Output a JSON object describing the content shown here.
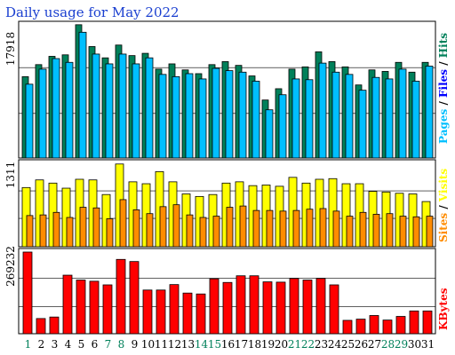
{
  "chart_data": {
    "type": "bar",
    "title": "Daily usage for May 2022",
    "categories": [
      "1",
      "2",
      "3",
      "4",
      "5",
      "6",
      "7",
      "8",
      "9",
      "10",
      "11",
      "12",
      "13",
      "14",
      "15",
      "16",
      "17",
      "18",
      "19",
      "20",
      "21",
      "22",
      "23",
      "24",
      "25",
      "26",
      "27",
      "28",
      "29",
      "30",
      "31"
    ],
    "weekend_days": [
      "1",
      "7",
      "8",
      "14",
      "15",
      "21",
      "22",
      "28",
      "29"
    ],
    "panels": [
      {
        "name": "requests",
        "max_label": "17918",
        "ylim": [
          0,
          17918
        ],
        "series": [
          {
            "name": "Hits",
            "color": "#00805a",
            "values": [
              10800,
              12400,
              13500,
              13700,
              17700,
              14800,
              13300,
              15000,
              13600,
              13900,
              11800,
              12500,
              11700,
              11200,
              12400,
              12800,
              12300,
              10900,
              7700,
              9200,
              11800,
              12100,
              14100,
              12800,
              12100,
              9700,
              11700,
              11500,
              12700,
              11400,
              12700
            ]
          },
          {
            "name": "Files",
            "color": "#0000ff",
            "values": [
              0,
              0,
              0,
              0,
              0,
              0,
              0,
              0,
              0,
              0,
              0,
              0,
              0,
              0,
              0,
              0,
              0,
              0,
              0,
              0,
              0,
              0,
              0,
              0,
              0,
              0,
              0,
              0,
              0,
              0,
              0
            ]
          },
          {
            "name": "Pages",
            "color": "#00bfff",
            "values": [
              9800,
              11800,
              13200,
              12700,
              16700,
              13800,
              12500,
              13800,
              12500,
              13300,
              11100,
              10800,
              11200,
              10500,
              11900,
              11600,
              11400,
              10200,
              6400,
              8400,
              10500,
              10400,
              12600,
              11400,
              11100,
              9000,
              10700,
              10500,
              11800,
              10200,
              12200
            ]
          }
        ]
      },
      {
        "name": "visits",
        "max_label": "1311",
        "ylim": [
          0,
          1311
        ],
        "series": [
          {
            "name": "Visits",
            "color": "#ffff00",
            "values": [
              930,
              1050,
              1000,
              920,
              1060,
              1050,
              820,
              1300,
              1020,
              990,
              1180,
              1020,
              830,
              790,
              820,
              1000,
              1020,
              960,
              970,
              950,
              1090,
              1000,
              1060,
              1070,
              990,
              990,
              870,
              860,
              840,
              830,
              710
            ]
          },
          {
            "name": "Sites",
            "color": "#ff8c00",
            "values": [
              490,
              500,
              540,
              460,
              620,
              610,
              440,
              740,
              580,
              520,
              630,
              660,
              500,
              460,
              480,
              620,
              640,
              570,
              570,
              560,
              570,
              590,
              600,
              560,
              480,
              540,
              510,
              520,
              480,
              470,
              480
            ]
          }
        ]
      },
      {
        "name": "kbytes",
        "max_label": "269232",
        "ylim": [
          0,
          269232
        ],
        "series": [
          {
            "name": "KBytes",
            "color": "#ff0000",
            "values": [
              269232,
              50000,
              55000,
              193000,
              177000,
              173000,
              161000,
              245000,
              238000,
              144000,
              144000,
              162000,
              134000,
              131000,
              181000,
              169000,
              191000,
              191000,
              171000,
              170000,
              182000,
              177000,
              182000,
              161000,
              44000,
              48000,
              60000,
              45000,
              57000,
              75000,
              75000
            ]
          }
        ]
      }
    ],
    "legend": [
      {
        "text": "Hits",
        "color": "#00805a"
      },
      {
        "text": " / ",
        "color": "#000000"
      },
      {
        "text": "Files",
        "color": "#0000ff"
      },
      {
        "text": " / ",
        "color": "#000000"
      },
      {
        "text": "Pages",
        "color": "#00bfff"
      },
      {
        "text": "Visits",
        "color": "#ffff00"
      },
      {
        "text": " / ",
        "color": "#000000"
      },
      {
        "text": "Sites",
        "color": "#ff8c00"
      },
      {
        "text": "KBytes",
        "color": "#ff0000"
      }
    ]
  }
}
